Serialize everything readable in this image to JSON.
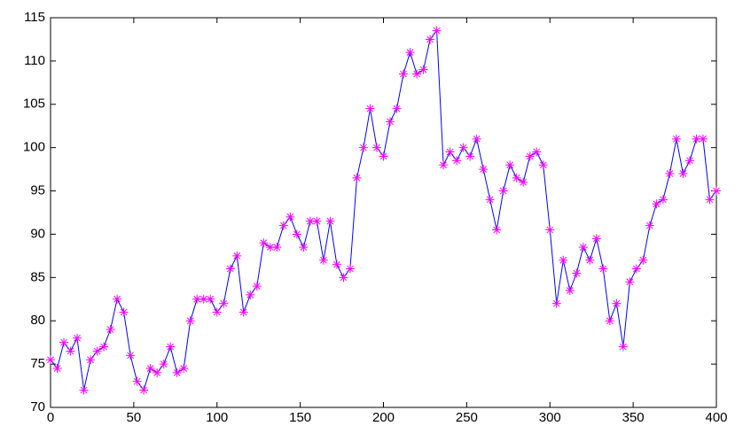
{
  "chart_data": {
    "type": "line",
    "x": [
      0,
      4,
      8,
      12,
      16,
      20,
      24,
      28,
      32,
      36,
      40,
      44,
      48,
      52,
      56,
      60,
      64,
      68,
      72,
      76,
      80,
      84,
      88,
      92,
      96,
      100,
      104,
      108,
      112,
      116,
      120,
      124,
      128,
      132,
      136,
      140,
      144,
      148,
      152,
      156,
      160,
      164,
      168,
      172,
      176,
      180,
      184,
      188,
      192,
      196,
      200,
      204,
      208,
      212,
      216,
      220,
      224,
      228,
      232,
      236,
      240,
      244,
      248,
      252,
      256,
      260,
      264,
      268,
      272,
      276,
      280,
      284,
      288,
      292,
      296,
      300,
      304,
      308,
      312,
      316,
      320,
      324,
      328,
      332,
      336,
      340,
      344,
      348,
      352,
      356,
      360,
      364,
      368,
      372,
      376,
      380,
      384,
      388,
      392,
      396,
      400
    ],
    "series": [
      {
        "color": "#0000ff",
        "marker": "*",
        "marker_color": "#ff00ff",
        "values": [
          75.5,
          74.5,
          77.5,
          76.5,
          78,
          72,
          75.5,
          76.5,
          77,
          79,
          82.5,
          81,
          76,
          73,
          72,
          74.5,
          74,
          75,
          77,
          74,
          74.5,
          80,
          82.5,
          82.5,
          82.5,
          81,
          82,
          86,
          87.5,
          81,
          83,
          84,
          89,
          88.5,
          88.5,
          91,
          92,
          90,
          88.5,
          91.5,
          91.5,
          87,
          91.5,
          86.5,
          85,
          86,
          96.5,
          100,
          104.5,
          100,
          99,
          103,
          104.5,
          108.5,
          111,
          108.5,
          109,
          112.5,
          113.5,
          98,
          99.5,
          98.5,
          100,
          99,
          101,
          97.5,
          94,
          90.5,
          95,
          98,
          96.5,
          96,
          99,
          99.5,
          98,
          90.5,
          82,
          87,
          83.5,
          85.5,
          88.5,
          87,
          89.5,
          86,
          80,
          82,
          77,
          84.5,
          86,
          87,
          91,
          93.5,
          94,
          97,
          101,
          97,
          98.5,
          101,
          101,
          94,
          95
        ]
      }
    ],
    "xlim": [
      0,
      400
    ],
    "xticks": [
      0,
      50,
      100,
      150,
      200,
      250,
      300,
      350,
      400
    ],
    "ylim": [
      70,
      115
    ],
    "yticks": [
      70,
      75,
      80,
      85,
      90,
      95,
      100,
      105,
      110,
      115
    ]
  }
}
